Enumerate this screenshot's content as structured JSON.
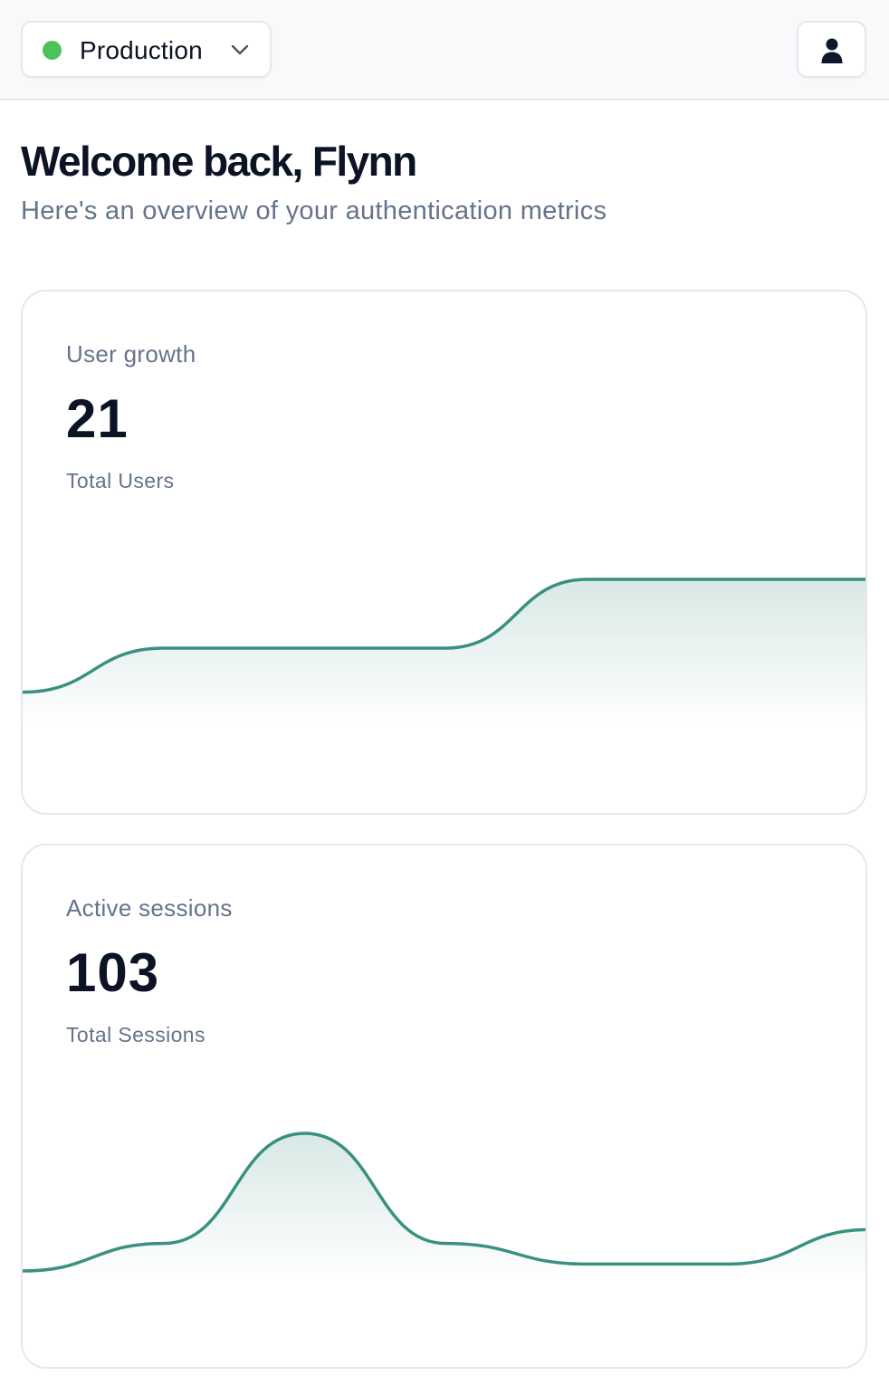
{
  "header": {
    "environment": {
      "label": "Production",
      "status_color": "#4cc35a",
      "chevron_icon": "chevron-down-icon"
    },
    "user_button": {
      "icon": "user-icon"
    }
  },
  "welcome": {
    "title": "Welcome back, Flynn",
    "subtitle": "Here's an overview of your authentication metrics"
  },
  "theme": {
    "accent": "#3a9080",
    "card_border": "#e5e7eb",
    "muted_text": "#64748b"
  },
  "cards": [
    {
      "title": "User growth",
      "value": "21",
      "caption": "Total Users"
    },
    {
      "title": "Active sessions",
      "value": "103",
      "caption": "Total Sessions"
    }
  ],
  "chart_data": [
    {
      "type": "area",
      "x": [
        0,
        1,
        2,
        3,
        4,
        5,
        6
      ],
      "values": [
        0.18,
        0.5,
        0.5,
        0.5,
        1.0,
        1.0,
        1.0
      ],
      "xlabel": "",
      "ylabel": "",
      "grid": false
    },
    {
      "type": "area",
      "x": [
        0,
        1,
        2,
        3,
        4,
        5,
        6
      ],
      "values": [
        0.0,
        0.2,
        1.0,
        0.2,
        0.05,
        0.05,
        0.3
      ],
      "xlabel": "",
      "ylabel": "",
      "grid": false
    }
  ]
}
